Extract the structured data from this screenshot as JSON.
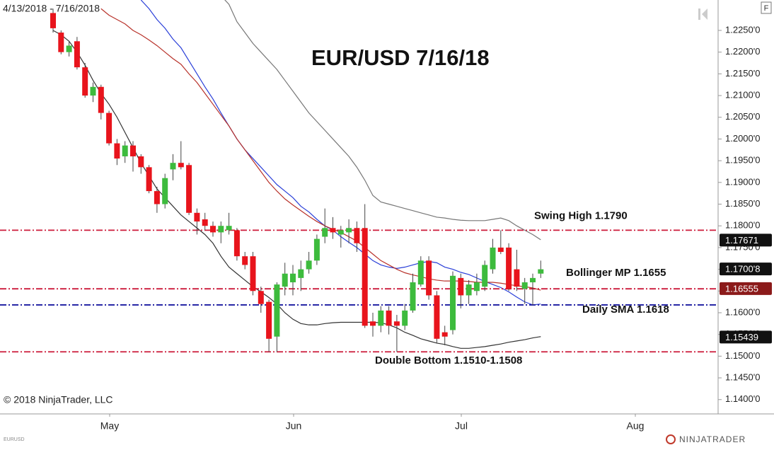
{
  "chart_data": {
    "type": "candlestick",
    "title": "EUR/USD 7/16/18",
    "date_range": "4/13/2018 - 7/16/2018",
    "copyright": "© 2018 NinjaTrader, LLC",
    "symbol": "EURUSD",
    "logo": "NINJATRADER",
    "corner_button": "F",
    "x_labels": [
      "May",
      "Jun",
      "Jul",
      "Aug"
    ],
    "up_color": "#3dbb3d",
    "down_color": "#e8141c",
    "ylim": [
      1.1367,
      1.232
    ],
    "yticks": [
      {
        "value": 1.225,
        "label": "1.2250'0"
      },
      {
        "value": 1.22,
        "label": "1.2200'0"
      },
      {
        "value": 1.215,
        "label": "1.2150'0"
      },
      {
        "value": 1.21,
        "label": "1.2100'0"
      },
      {
        "value": 1.205,
        "label": "1.2050'0"
      },
      {
        "value": 1.2,
        "label": "1.2000'0"
      },
      {
        "value": 1.195,
        "label": "1.1950'0"
      },
      {
        "value": 1.19,
        "label": "1.1900'0"
      },
      {
        "value": 1.185,
        "label": "1.1850'0"
      },
      {
        "value": 1.18,
        "label": "1.1800'0"
      },
      {
        "value": 1.175,
        "label": "1.1750'0"
      },
      {
        "value": 1.17,
        "label": "1.1700'0"
      },
      {
        "value": 1.165,
        "label": "1.1650'0"
      },
      {
        "value": 1.16,
        "label": "1.1600'0"
      },
      {
        "value": 1.155,
        "label": "1.1550'0"
      },
      {
        "value": 1.15,
        "label": "1.1500'0"
      },
      {
        "value": 1.145,
        "label": "1.1450'0"
      },
      {
        "value": 1.14,
        "label": "1.1400'0"
      }
    ],
    "ohlc": [
      [
        1.229,
        1.23,
        1.2245,
        1.2255
      ],
      [
        1.2245,
        1.225,
        1.2195,
        1.22
      ],
      [
        1.22,
        1.2225,
        1.219,
        1.2215
      ],
      [
        1.2225,
        1.2235,
        1.216,
        1.2165
      ],
      [
        1.2165,
        1.2175,
        1.2095,
        1.21
      ],
      [
        1.21,
        1.213,
        1.2085,
        1.212
      ],
      [
        1.212,
        1.2125,
        1.2045,
        1.206
      ],
      [
        1.206,
        1.2065,
        1.1985,
        1.199
      ],
      [
        1.199,
        1.2,
        1.194,
        1.1955
      ],
      [
        1.196,
        1.1995,
        1.1945,
        1.1985
      ],
      [
        1.1985,
        1.1995,
        1.1925,
        1.196
      ],
      [
        1.196,
        1.1965,
        1.192,
        1.1935
      ],
      [
        1.1935,
        1.194,
        1.1875,
        1.188
      ],
      [
        1.188,
        1.189,
        1.183,
        1.185
      ],
      [
        1.185,
        1.192,
        1.184,
        1.191
      ],
      [
        1.193,
        1.1965,
        1.1905,
        1.1945
      ],
      [
        1.1945,
        1.1995,
        1.193,
        1.1935
      ],
      [
        1.194,
        1.1945,
        1.1825,
        1.183
      ],
      [
        1.183,
        1.184,
        1.178,
        1.181
      ],
      [
        1.1815,
        1.183,
        1.179,
        1.18
      ],
      [
        1.18,
        1.181,
        1.1775,
        1.1785
      ],
      [
        1.1785,
        1.181,
        1.176,
        1.18
      ],
      [
        1.179,
        1.183,
        1.178,
        1.18
      ],
      [
        1.179,
        1.1795,
        1.172,
        1.173
      ],
      [
        1.173,
        1.174,
        1.17,
        1.171
      ],
      [
        1.173,
        1.174,
        1.164,
        1.165
      ],
      [
        1.165,
        1.166,
        1.16,
        1.162
      ],
      [
        1.1625,
        1.163,
        1.151,
        1.154
      ],
      [
        1.1545,
        1.167,
        1.151,
        1.1665
      ],
      [
        1.166,
        1.1715,
        1.164,
        1.169
      ],
      [
        1.167,
        1.171,
        1.164,
        1.169
      ],
      [
        1.168,
        1.172,
        1.165,
        1.17
      ],
      [
        1.17,
        1.174,
        1.169,
        1.172
      ],
      [
        1.172,
        1.178,
        1.171,
        1.177
      ],
      [
        1.1775,
        1.184,
        1.176,
        1.1795
      ],
      [
        1.1795,
        1.182,
        1.177,
        1.1785
      ],
      [
        1.178,
        1.18,
        1.175,
        1.179
      ],
      [
        1.1785,
        1.1815,
        1.176,
        1.1795
      ],
      [
        1.1795,
        1.181,
        1.174,
        1.176
      ],
      [
        1.1795,
        1.185,
        1.1565,
        1.157
      ],
      [
        1.158,
        1.16,
        1.1545,
        1.157
      ],
      [
        1.157,
        1.1615,
        1.1555,
        1.1605
      ],
      [
        1.1605,
        1.1615,
        1.155,
        1.157
      ],
      [
        1.158,
        1.1595,
        1.151,
        1.157
      ],
      [
        1.157,
        1.162,
        1.156,
        1.1605
      ],
      [
        1.1605,
        1.169,
        1.16,
        1.167
      ],
      [
        1.1665,
        1.173,
        1.166,
        1.172
      ],
      [
        1.172,
        1.173,
        1.163,
        1.164
      ],
      [
        1.164,
        1.165,
        1.153,
        1.154
      ],
      [
        1.1555,
        1.157,
        1.1525,
        1.1545
      ],
      [
        1.156,
        1.1695,
        1.155,
        1.1685
      ],
      [
        1.168,
        1.169,
        1.161,
        1.164
      ],
      [
        1.164,
        1.1675,
        1.162,
        1.1665
      ],
      [
        1.165,
        1.169,
        1.164,
        1.167
      ],
      [
        1.166,
        1.172,
        1.165,
        1.171
      ],
      [
        1.17,
        1.177,
        1.169,
        1.175
      ],
      [
        1.175,
        1.179,
        1.1735,
        1.174
      ],
      [
        1.175,
        1.176,
        1.165,
        1.1655
      ],
      [
        1.17,
        1.1745,
        1.165,
        1.166
      ],
      [
        1.1655,
        1.168,
        1.162,
        1.167
      ],
      [
        1.167,
        1.169,
        1.1618,
        1.168
      ],
      [
        1.169,
        1.172,
        1.168,
        1.17
      ]
    ],
    "series": [
      {
        "color": "#777777",
        "values": [
          null,
          null,
          null,
          null,
          null,
          null,
          null,
          null,
          null,
          null,
          null,
          null,
          null,
          null,
          null,
          null,
          null,
          null,
          null,
          null,
          null,
          1.233,
          1.231,
          1.227,
          1.2245,
          1.222,
          1.22,
          1.218,
          1.216,
          1.2135,
          1.211,
          1.2085,
          1.206,
          1.204,
          1.202,
          1.2,
          1.198,
          1.196,
          1.1935,
          1.1905,
          1.187,
          1.1855,
          1.185,
          1.1845,
          1.184,
          1.1835,
          1.183,
          1.1825,
          1.182,
          1.1818,
          1.1815,
          1.1813,
          1.1812,
          1.1812,
          1.1812,
          1.1815,
          1.1818,
          1.1812,
          1.18,
          1.179,
          1.178,
          1.1768
        ]
      },
      {
        "color": "#2a3fd8",
        "values": [
          null,
          null,
          null,
          null,
          null,
          null,
          null,
          null,
          null,
          null,
          null,
          1.232,
          1.23,
          1.2275,
          1.2255,
          1.223,
          1.221,
          1.218,
          1.215,
          1.212,
          1.2092,
          1.206,
          1.203,
          1.2,
          1.1975,
          1.1955,
          1.1935,
          1.1915,
          1.1895,
          1.188,
          1.1865,
          1.1845,
          1.1832,
          1.1815,
          1.18,
          1.179,
          1.1775,
          1.1762,
          1.175,
          1.1735,
          1.172,
          1.171,
          1.1705,
          1.1702,
          1.1705,
          1.171,
          1.1715,
          1.1718,
          1.1715,
          1.1705,
          1.17,
          1.1693,
          1.1688,
          1.168,
          1.1672,
          1.1665,
          1.1658,
          1.1648,
          1.1636,
          1.1625,
          1.1618,
          1.162
        ]
      },
      {
        "color": "#b8322a",
        "values": [
          null,
          null,
          null,
          null,
          null,
          null,
          1.23,
          1.2285,
          1.2275,
          1.2265,
          1.225,
          1.224,
          1.2228,
          1.2215,
          1.22,
          1.2185,
          1.2172,
          1.215,
          1.213,
          1.2105,
          1.208,
          1.2055,
          1.203,
          1.2,
          1.1975,
          1.195,
          1.1925,
          1.19,
          1.188,
          1.1862,
          1.1848,
          1.1835,
          1.1822,
          1.181,
          1.18,
          1.1792,
          1.1785,
          1.1775,
          1.1765,
          1.175,
          1.1735,
          1.172,
          1.171,
          1.17,
          1.1692,
          1.1687,
          1.1683,
          1.1678,
          1.1675,
          1.1673,
          1.1673,
          1.1673,
          1.1672,
          1.167,
          1.167,
          1.167,
          1.1668,
          1.1665,
          1.1662,
          1.166,
          1.1657,
          1.1652
        ]
      },
      {
        "color": "#333333",
        "values": [
          1.225,
          1.224,
          1.2225,
          1.22,
          1.217,
          1.2135,
          1.2105,
          1.208,
          1.205,
          1.2015,
          1.198,
          1.1945,
          1.1915,
          1.1885,
          1.1865,
          1.1845,
          1.1825,
          1.181,
          1.1795,
          1.178,
          1.176,
          1.173,
          1.1705,
          1.169,
          1.1675,
          1.166,
          1.1648,
          1.1635,
          1.162,
          1.16,
          1.1585,
          1.1575,
          1.1572,
          1.1572,
          1.1575,
          1.1577,
          1.1578,
          1.1578,
          1.1578,
          1.1578,
          1.1578,
          1.1577,
          1.1572,
          1.1565,
          1.1555,
          1.1548,
          1.154,
          1.1535,
          1.153,
          1.1527,
          1.1522,
          1.1518,
          1.1518,
          1.152,
          1.1522,
          1.1525,
          1.1528,
          1.1532,
          1.1535,
          1.1538,
          1.1542,
          1.1545
        ]
      }
    ],
    "levels": [
      {
        "value": 1.179,
        "color": "#cc1a3a",
        "label": "Swing High  1.1790"
      },
      {
        "value": 1.1655,
        "color": "#cc1a3a",
        "label": "Bollinger MP 1.1655"
      },
      {
        "value": 1.1618,
        "color": "#1a1aa0",
        "label": "Daily SMA 1.1618"
      },
      {
        "value": 1.151,
        "color": "#cc1a3a",
        "label": "Double Bottom 1.1510-1.1508"
      }
    ],
    "price_badges": [
      {
        "value": 1.17671,
        "label": "1.17671",
        "color": "#111111"
      },
      {
        "value": 1.17008,
        "label": "1.1700'8",
        "color": "#111111"
      },
      {
        "value": 1.16555,
        "label": "1.16555",
        "color": "#8b1a1a"
      },
      {
        "value": 1.15439,
        "label": "1.15439",
        "color": "#111111"
      }
    ]
  }
}
